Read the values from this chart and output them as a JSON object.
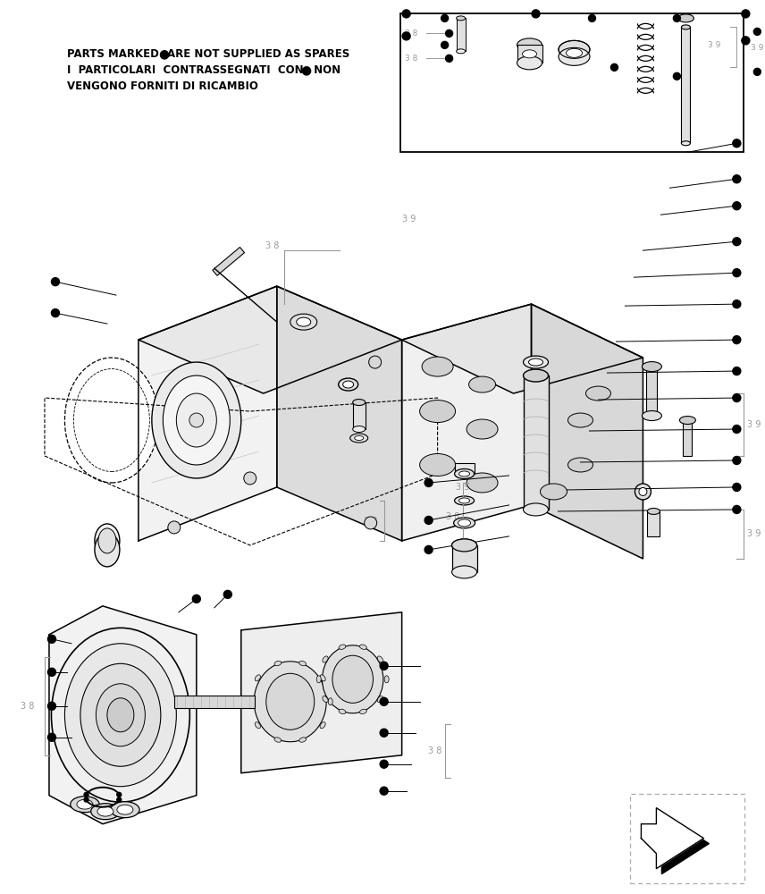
{
  "bg_color": "#ffffff",
  "line_color": "#000000",
  "gray_color": "#999999",
  "figsize": [
    8.56,
    10.0
  ],
  "dpi": 100,
  "text_line1": "PARTS MARKED",
  "text_line1b": "ARE NOT SUPPLIED AS SPARES",
  "text_line2": "I  PARTICOLARI  CONTRASSEGNATI  CON",
  "text_line2b": "NON",
  "text_line3": "VENGONO FORNITI DI RICAMBIO"
}
